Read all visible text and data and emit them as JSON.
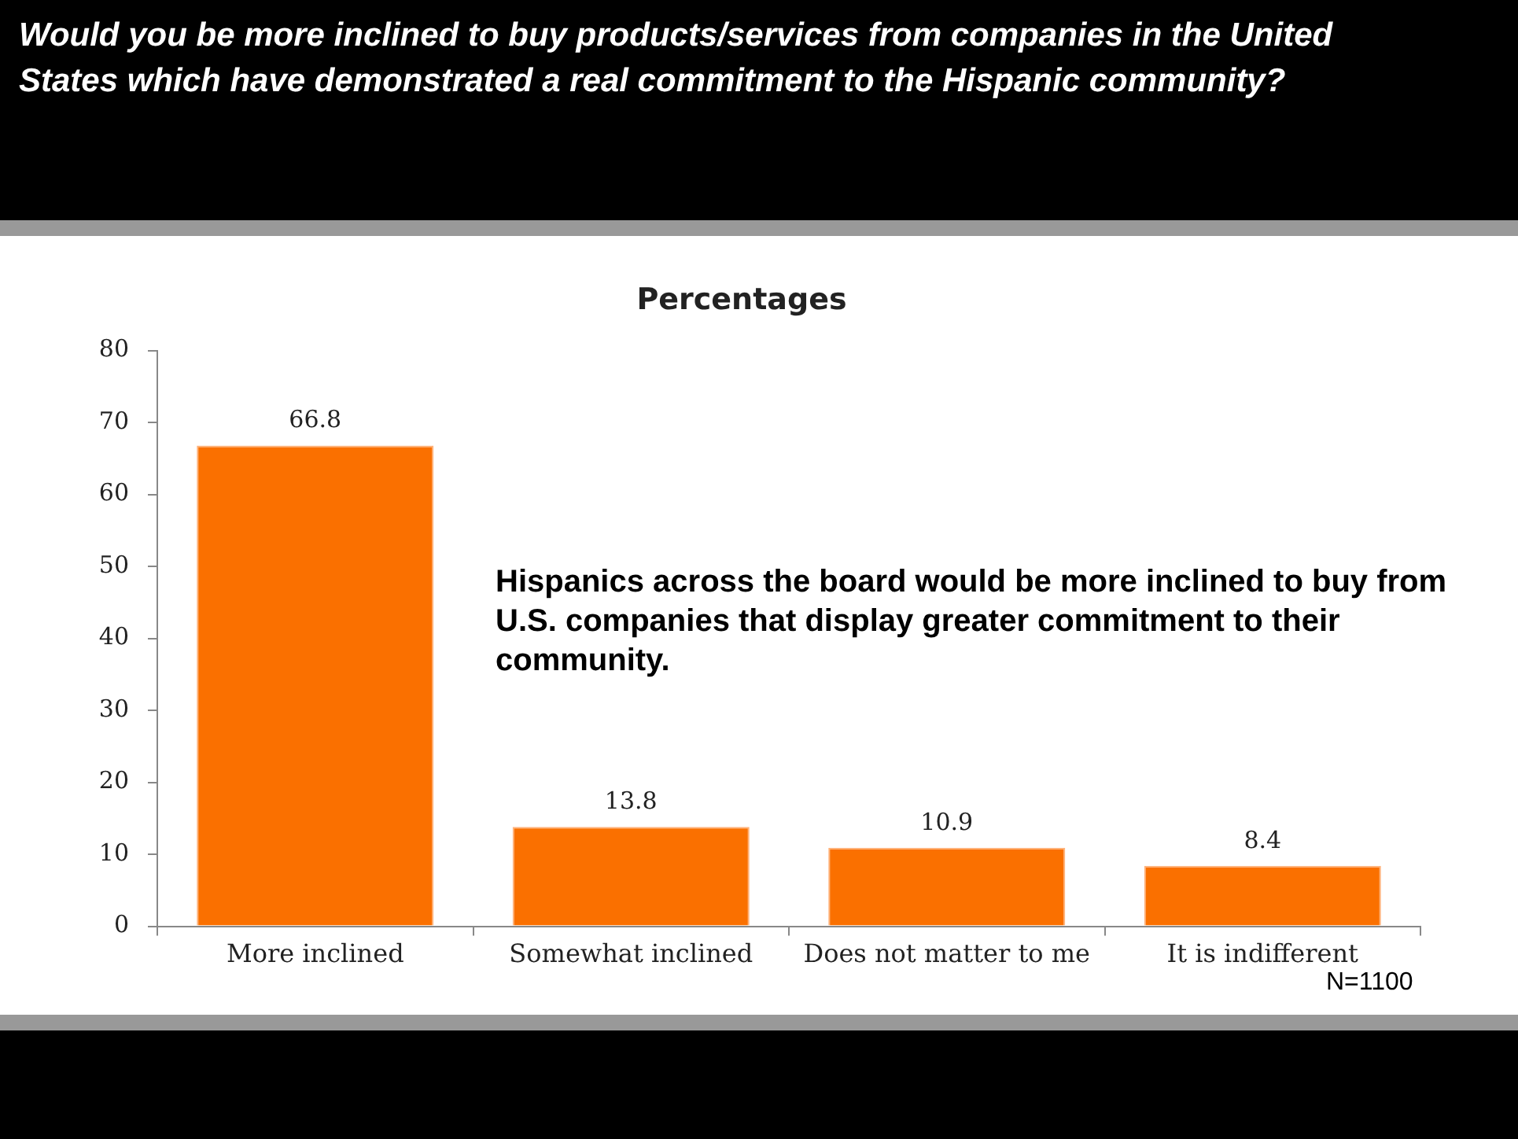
{
  "chart_data": {
    "type": "bar",
    "title": "Would you be more inclined to buy products/services from companies in the United States which have demonstrated a real commitment to the Hispanic community?",
    "subtitle": "Percentages",
    "categories": [
      "More inclined",
      "Somewhat inclined",
      "Does not matter to me",
      "It is indifferent"
    ],
    "values": [
      66.8,
      13.8,
      10.9,
      8.4
    ],
    "color": "#fa7000",
    "ylim": [
      0,
      80
    ],
    "yticks": [
      0,
      10,
      20,
      30,
      40,
      50,
      60,
      70,
      80
    ],
    "grid": false,
    "legend": false,
    "data_labels": true,
    "annotations": [
      "Hispanics across the board would be more inclined to buy from U.S. companies that display greater commitment to their community.",
      "N=1100"
    ]
  }
}
